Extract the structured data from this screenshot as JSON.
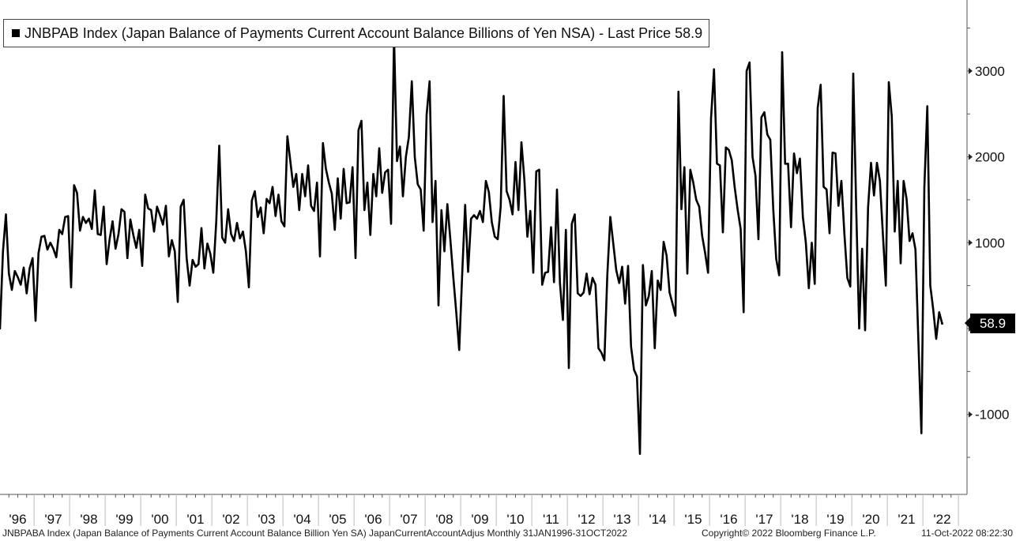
{
  "legend": {
    "text": "JNBPAB Index (Japan Balance of Payments Current Account Balance Billions of Yen NSA) - Last Price 58.9"
  },
  "last_price_label": "58.9",
  "footer": {
    "description": "JNBPABA Index (Japan Balance of Payments Current Account Balance Billion Yen SA) JapanCurrentAccountAdjus  Monthly 31JAN1996-31OCT2022",
    "copyright": "Copyright© 2022 Bloomberg Finance L.P.",
    "timestamp": "11-Oct-2022 08:22:30"
  },
  "chart_data": {
    "type": "line",
    "title": "JNBPAB Index (Japan Balance of Payments Current Account Balance Billions of Yen NSA)",
    "xlabel": "",
    "ylabel": "",
    "x_start": "1996-01",
    "frequency": "monthly",
    "ylim": [
      -1980,
      3780
    ],
    "yticks": [
      -1000,
      0,
      1000,
      2000,
      3000
    ],
    "ytick_labels": [
      "-1000",
      "",
      "1000",
      "2000",
      "3000"
    ],
    "year_labels": [
      "'96",
      "'97",
      "'98",
      "'99",
      "'00",
      "'01",
      "'02",
      "'03",
      "'04",
      "'05",
      "'06",
      "'07",
      "'08",
      "'09",
      "'10",
      "'11",
      "'12",
      "'13",
      "'14",
      "'15",
      "'16",
      "'17",
      "'18",
      "'19",
      "'20",
      "'21",
      "'22"
    ],
    "grid": false,
    "legend_position": "top-left",
    "line_color": "#000000",
    "series": [
      {
        "name": "JNBPAB Index",
        "values": [
          0,
          900,
          1330,
          640,
          450,
          670,
          600,
          510,
          710,
          410,
          700,
          820,
          90,
          880,
          1070,
          1080,
          920,
          1000,
          930,
          830,
          1150,
          1100,
          1300,
          1310,
          480,
          1670,
          1580,
          1140,
          1300,
          1230,
          1280,
          1160,
          1610,
          1100,
          1090,
          1420,
          750,
          1040,
          1250,
          930,
          1100,
          1390,
          1360,
          820,
          1270,
          1090,
          940,
          1150,
          730,
          1560,
          1400,
          1380,
          1130,
          1420,
          1320,
          1210,
          1430,
          840,
          1030,
          900,
          310,
          1420,
          1500,
          820,
          500,
          800,
          720,
          750,
          1170,
          700,
          990,
          870,
          650,
          1250,
          2130,
          1060,
          1000,
          1390,
          1100,
          1020,
          1230,
          1050,
          1130,
          900,
          480,
          1490,
          1600,
          1300,
          1410,
          1110,
          1510,
          1460,
          1650,
          1310,
          1560,
          1250,
          1190,
          2240,
          1950,
          1650,
          1800,
          1380,
          1800,
          1540,
          1900,
          1430,
          1370,
          1700,
          840,
          2160,
          1860,
          1700,
          1570,
          1150,
          1750,
          1280,
          1860,
          1460,
          1470,
          1880,
          820,
          2310,
          2420,
          1380,
          1700,
          1090,
          1800,
          1540,
          2100,
          1580,
          1820,
          1850,
          1220,
          3400,
          1950,
          2120,
          1540,
          2000,
          2230,
          2880,
          2000,
          1680,
          1620,
          1140,
          2490,
          2880,
          1240,
          1720,
          270,
          1380,
          900,
          1450,
          1040,
          600,
          190,
          -250,
          630,
          1440,
          660,
          1280,
          1320,
          1280,
          1370,
          1240,
          1720,
          1590,
          1240,
          1070,
          1040,
          1420,
          2710,
          1600,
          1500,
          1330,
          1940,
          1380,
          2170,
          1730,
          1070,
          1370,
          650,
          1830,
          1850,
          510,
          650,
          660,
          1180,
          540,
          1620,
          530,
          100,
          1150,
          -460,
          1220,
          1330,
          410,
          380,
          420,
          640,
          400,
          590,
          510,
          -230,
          -280,
          -370,
          630,
          1300,
          990,
          680,
          530,
          720,
          290,
          730,
          -210,
          -480,
          -560,
          -1460,
          740,
          270,
          380,
          670,
          -230,
          560,
          450,
          1010,
          850,
          420,
          290,
          150,
          2760,
          1390,
          1880,
          640,
          1850,
          1700,
          1500,
          1420,
          1080,
          880,
          650,
          2450,
          3020,
          1920,
          1900,
          1120,
          2110,
          2080,
          1960,
          1640,
          1380,
          1160,
          190,
          3000,
          3100,
          2000,
          1780,
          1040,
          2460,
          2520,
          2260,
          2200,
          1390,
          810,
          620,
          3220,
          1920,
          1920,
          1180,
          2040,
          1810,
          1980,
          1300,
          1000,
          470,
          1000,
          520,
          2570,
          2840,
          1650,
          1620,
          1110,
          2050,
          2040,
          1430,
          1720,
          1110,
          590,
          490,
          2970,
          1400,
          0,
          930,
          -20,
          1410,
          1930,
          1550,
          1930,
          1720,
          1100,
          500,
          2870,
          2470,
          1130,
          1720,
          760,
          1720,
          1510,
          1020,
          1110,
          920,
          -160,
          -1220,
          1650,
          2590,
          500,
          220,
          -120,
          190,
          58.9
        ]
      }
    ],
    "last_price": 58.9
  }
}
